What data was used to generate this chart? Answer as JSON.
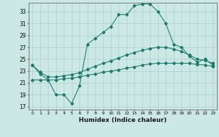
{
  "xlabel": "Humidex (Indice chaleur)",
  "ylabel": "",
  "xlim": [
    -0.5,
    23.5
  ],
  "ylim": [
    16.5,
    34.5
  ],
  "yticks": [
    17,
    19,
    21,
    23,
    25,
    27,
    29,
    31,
    33
  ],
  "xticks": [
    0,
    1,
    2,
    3,
    4,
    5,
    6,
    7,
    8,
    9,
    10,
    11,
    12,
    13,
    14,
    15,
    16,
    17,
    18,
    19,
    20,
    21,
    22,
    23
  ],
  "bg_color": "#cce8e4",
  "grid_color": "#aacfcc",
  "line_color": "#1a7a6e",
  "line1_x": [
    0,
    1,
    2,
    3,
    4,
    5,
    6,
    7,
    8,
    9,
    10,
    11,
    12,
    13,
    14,
    15,
    16,
    17,
    18,
    19,
    20,
    21,
    22,
    23
  ],
  "line1_y": [
    24.0,
    22.5,
    21.5,
    19.0,
    19.0,
    17.5,
    20.5,
    27.5,
    28.5,
    29.5,
    30.5,
    32.5,
    32.5,
    34.0,
    34.3,
    34.3,
    33.0,
    31.0,
    27.5,
    27.0,
    25.5,
    24.5,
    25.0,
    24.0
  ],
  "line2_x": [
    0,
    1,
    2,
    3,
    4,
    5,
    6,
    7,
    8,
    9,
    10,
    11,
    12,
    13,
    14,
    15,
    16,
    17,
    18,
    19,
    20,
    21,
    22,
    23
  ],
  "line2_y": [
    24.0,
    22.8,
    22.0,
    22.0,
    22.2,
    22.4,
    22.7,
    23.3,
    23.8,
    24.3,
    24.7,
    25.2,
    25.7,
    26.1,
    26.5,
    26.8,
    27.0,
    27.0,
    26.7,
    26.3,
    25.7,
    25.0,
    24.8,
    24.3
  ],
  "line3_x": [
    0,
    1,
    2,
    3,
    4,
    5,
    6,
    7,
    8,
    9,
    10,
    11,
    12,
    13,
    14,
    15,
    16,
    17,
    18,
    19,
    20,
    21,
    22,
    23
  ],
  "line3_y": [
    21.5,
    21.5,
    21.5,
    21.5,
    21.7,
    21.8,
    22.0,
    22.3,
    22.5,
    22.8,
    23.0,
    23.2,
    23.5,
    23.7,
    24.0,
    24.2,
    24.3,
    24.3,
    24.3,
    24.3,
    24.3,
    24.1,
    24.0,
    23.8
  ]
}
